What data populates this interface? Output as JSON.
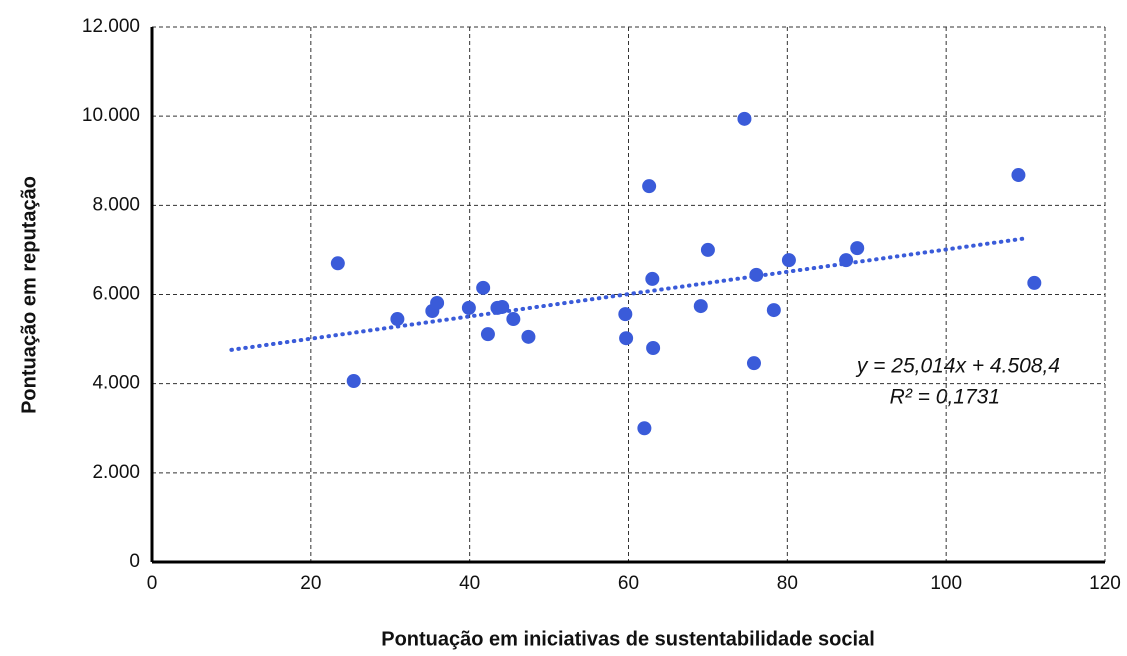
{
  "chart_data": {
    "type": "scatter",
    "x_label": "Pontuação em iniciativas de sustentabilidade social",
    "y_label": "Pontuação em reputação",
    "color": "#3a5bd9",
    "x": [
      23.4,
      25.4,
      30.9,
      35.3,
      35.9,
      39.9,
      41.7,
      42.3,
      43.5,
      44.1,
      45.5,
      47.4,
      59.6,
      59.7,
      62.0,
      62.6,
      63.0,
      63.1,
      69.1,
      70.0,
      74.6,
      75.8,
      76.1,
      78.3,
      80.2,
      87.4,
      88.8,
      109.1,
      111.1
    ],
    "values": [
      6700,
      4060,
      5450,
      5630,
      5810,
      5700,
      6150,
      5110,
      5700,
      5720,
      5450,
      5050,
      5560,
      5020,
      3000,
      8430,
      6350,
      4800,
      5740,
      7000,
      9940,
      4460,
      6440,
      5650,
      6770,
      6770,
      7040,
      8680,
      6260
    ],
    "xlim": [
      0,
      120
    ],
    "xticks": [
      0,
      20,
      40,
      60,
      80,
      100,
      120
    ],
    "ylim": [
      0,
      12000
    ],
    "yticks": [
      0,
      {
        "value": 2000,
        "label": "2.000"
      },
      {
        "value": 4000,
        "label": "4.000"
      },
      {
        "value": 6000,
        "label": "6.000"
      },
      {
        "value": 8000,
        "label": "8.000"
      },
      {
        "value": 10000,
        "label": "10.000"
      },
      {
        "value": 12000,
        "label": "12.000"
      }
    ],
    "grid": true,
    "trendline": {
      "equation": "y = 25,014x + 4.508,4",
      "r2": "R² = 0,1731",
      "slope": 25.014,
      "intercept": 4508.4,
      "xlim": [
        10,
        110
      ],
      "color": "#3a5bd9"
    }
  }
}
